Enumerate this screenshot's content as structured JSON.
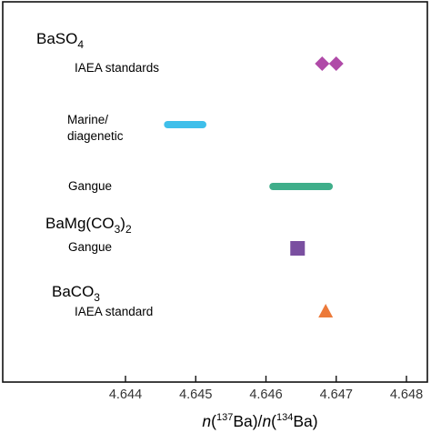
{
  "chart_data": {
    "type": "scatter",
    "xlabel_parts": [
      "n",
      "(",
      "137",
      "Ba)/",
      "n",
      "(",
      "134",
      "Ba)"
    ],
    "xlim": [
      4.6434,
      4.6485
    ],
    "xticks": [
      "4.644",
      "4.645",
      "4.646",
      "4.647",
      "4.648"
    ],
    "grid": false,
    "groups": [
      {
        "label_parts": [
          "BaSO",
          "4"
        ],
        "rows": [
          {
            "label": [
              "IAEA standards"
            ],
            "marker": "diamond",
            "color": "#b04aa8",
            "points": [
              4.6468,
              4.647
            ]
          },
          {
            "label": [
              "Marine/",
              "diagenetic"
            ],
            "marker": "range",
            "color": "#3fbfea",
            "range": [
              4.6446,
              4.6451
            ]
          },
          {
            "label": [
              "Gangue"
            ],
            "marker": "range",
            "color": "#3fae8a",
            "range": [
              4.6461,
              4.6469
            ]
          }
        ]
      },
      {
        "label_parts": [
          "BaMg(CO",
          "3",
          ")",
          "2"
        ],
        "rows": [
          {
            "label": [
              "Gangue"
            ],
            "marker": "square",
            "color": "#7a4fa0",
            "points": [
              4.64645
            ]
          }
        ]
      },
      {
        "label_parts": [
          "BaCO",
          "3"
        ],
        "rows": [
          {
            "label": [
              "IAEA standard"
            ],
            "marker": "triangle",
            "color": "#ec7a3a",
            "points": [
              4.64685
            ]
          }
        ]
      }
    ]
  }
}
